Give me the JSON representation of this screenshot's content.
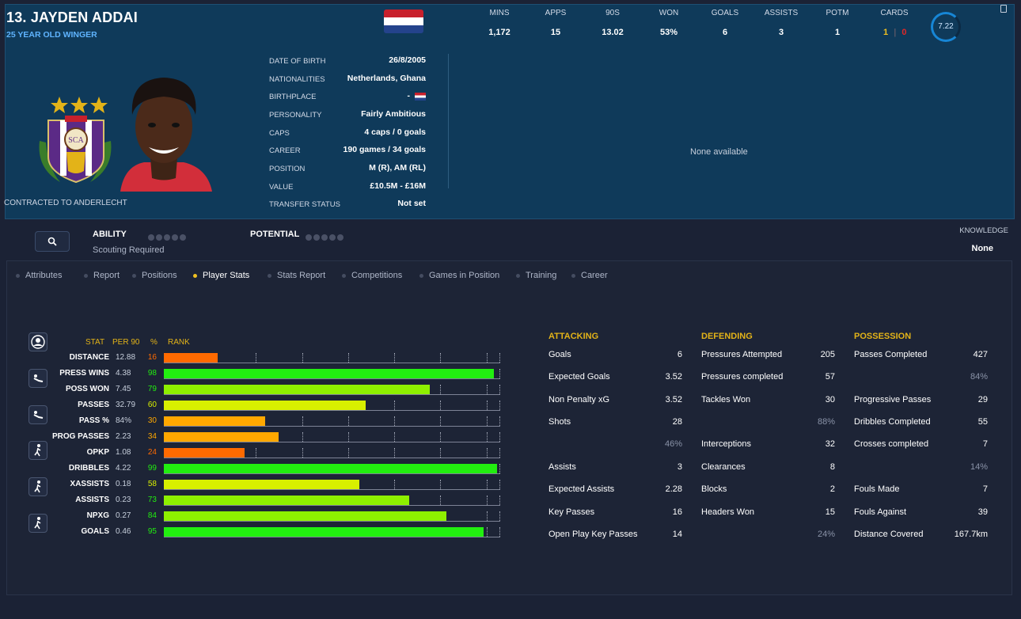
{
  "player": {
    "name": "13. JAYDEN ADDAI",
    "subtitle": "25 YEAR OLD WINGER",
    "contract": "CONTRACTED TO ANDERLECHT"
  },
  "details": [
    {
      "k": "DATE OF BIRTH",
      "v": "26/8/2005"
    },
    {
      "k": "NATIONALITIES",
      "v": "Netherlands, Ghana"
    },
    {
      "k": "BIRTHPLACE",
      "v": "-"
    },
    {
      "k": "PERSONALITY",
      "v": "Fairly Ambitious"
    },
    {
      "k": "CAPS",
      "v": "4 caps / 0 goals"
    },
    {
      "k": "CAREER",
      "v": "190 games /  34 goals"
    },
    {
      "k": "POSITION",
      "v": "M (R), AM (RL)"
    },
    {
      "k": "VALUE",
      "v": "£10.5M - £16M"
    },
    {
      "k": "TRANSFER STATUS",
      "v": "Not set"
    }
  ],
  "season_stats": [
    {
      "label": "MINS",
      "value": "1,172"
    },
    {
      "label": "APPS",
      "value": "15"
    },
    {
      "label": "90S",
      "value": "13.02"
    },
    {
      "label": "WON",
      "value": "53%"
    },
    {
      "label": "GOALS",
      "value": "6"
    },
    {
      "label": "ASSISTS",
      "value": "3"
    },
    {
      "label": "POTM",
      "value": "1"
    }
  ],
  "cards": {
    "label": "CARDS",
    "yellow": "1",
    "red": "0"
  },
  "rating": "7.22",
  "none_available": "None available",
  "ability": {
    "label": "ABILITY",
    "note": "Scouting Required"
  },
  "potential": {
    "label": "POTENTIAL"
  },
  "knowledge": {
    "label": "KNOWLEDGE",
    "value": "None"
  },
  "tabs": [
    "Attributes",
    "Report",
    "Positions",
    "Player Stats",
    "Stats Report",
    "Competitions",
    "Games in Position",
    "Training",
    "Career"
  ],
  "active_tab": "Player Stats",
  "chart_headers": {
    "stat": "STAT",
    "per90": "PER 90",
    "pct": "%",
    "rank": "RANK"
  },
  "chart_data": {
    "type": "bar",
    "orientation": "horizontal",
    "categories": [
      "DISTANCE",
      "PRESS WINS",
      "POSS WON",
      "PASSES",
      "PASS %",
      "PROG PASSES",
      "OPKP",
      "DRIBBLES",
      "XASSISTS",
      "ASSISTS",
      "NPXG",
      "GOALS"
    ],
    "per90": [
      "12.88",
      "4.38",
      "7.45",
      "32.79",
      "84%",
      "2.23",
      "1.08",
      "4.22",
      "0.18",
      "0.23",
      "0.27",
      "0.46"
    ],
    "values": [
      16,
      98,
      79,
      60,
      30,
      34,
      24,
      99,
      58,
      73,
      84,
      95
    ],
    "xlim": [
      0,
      100
    ],
    "colors": {
      "low": "#ff6a00",
      "midlow": "#ffa800",
      "mid": "#d8f000",
      "midhigh": "#8ef000",
      "high": "#22ee10"
    }
  },
  "attacking": {
    "title": "ATTACKING",
    "rows": [
      {
        "k": "Goals",
        "v": "6"
      },
      {
        "k": "Expected Goals",
        "v": "3.52"
      },
      {
        "k": "Non Penalty xG",
        "v": "3.52"
      },
      {
        "k": "Shots",
        "v": "28"
      },
      {
        "k": "",
        "v": "46%"
      },
      {
        "k": "Assists",
        "v": "3"
      },
      {
        "k": "Expected Assists",
        "v": "2.28"
      },
      {
        "k": "Key Passes",
        "v": "16"
      },
      {
        "k": "Open Play Key Passes",
        "v": "14"
      }
    ]
  },
  "defending": {
    "title": "DEFENDING",
    "rows": [
      {
        "k": "Pressures Attempted",
        "v": "205"
      },
      {
        "k": "Pressures completed",
        "v": "57"
      },
      {
        "k": "Tackles Won",
        "v": "30"
      },
      {
        "k": "",
        "v": "88%"
      },
      {
        "k": "Interceptions",
        "v": "32"
      },
      {
        "k": "Clearances",
        "v": "8"
      },
      {
        "k": "Blocks",
        "v": "2"
      },
      {
        "k": "Headers Won",
        "v": "15"
      },
      {
        "k": "",
        "v": "24%"
      }
    ]
  },
  "possession": {
    "title": "POSSESSION",
    "rows": [
      {
        "k": "Passes Completed",
        "v": "427"
      },
      {
        "k": "",
        "v": "84%"
      },
      {
        "k": "Progressive Passes",
        "v": "29"
      },
      {
        "k": "Dribbles Completed",
        "v": "55"
      },
      {
        "k": "Crosses completed",
        "v": "7"
      },
      {
        "k": "",
        "v": "14%"
      },
      {
        "k": "Fouls Made",
        "v": "7"
      },
      {
        "k": "Fouls Against",
        "v": "39"
      },
      {
        "k": "Distance Covered",
        "v": "167.7km"
      }
    ]
  },
  "icons": [
    "settings-icon",
    "search-icon",
    "flag-netherlands",
    "club-crest",
    "player-photo",
    "player-silhouette-icon",
    "sliding-tackle-icon",
    "running-icon"
  ]
}
